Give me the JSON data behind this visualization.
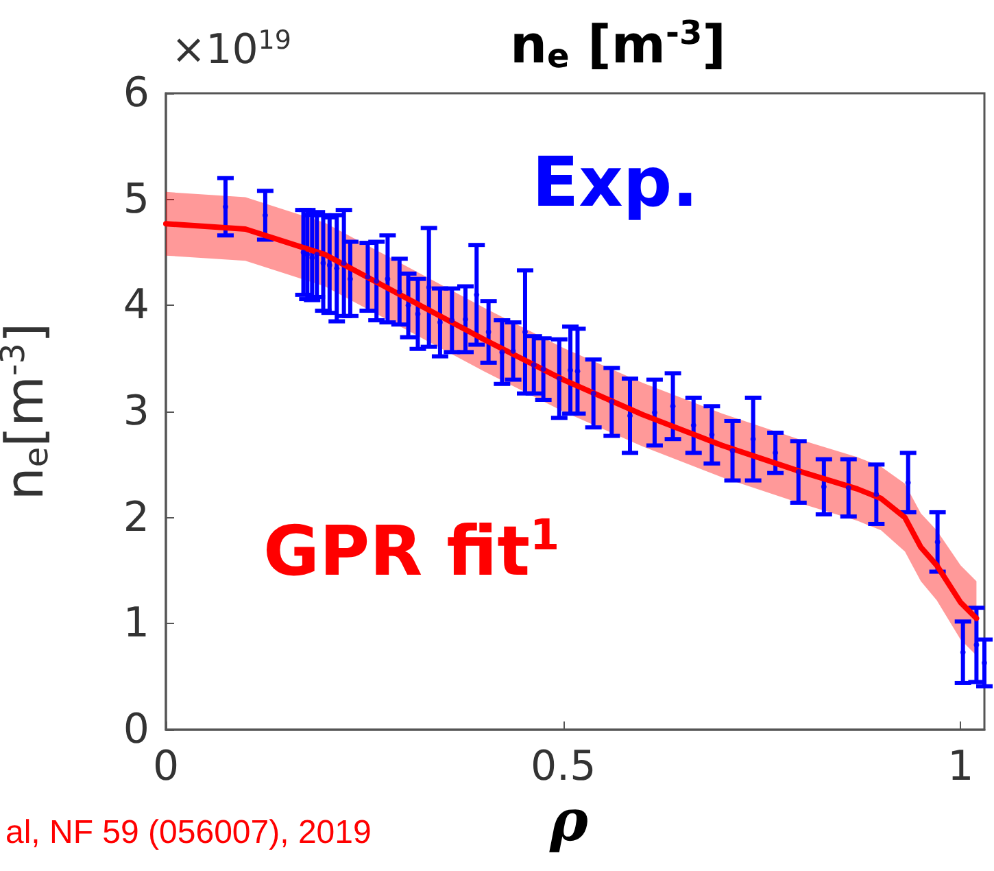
{
  "chart_data": {
    "type": "scatter",
    "title": "n$_{e}$ [m$^{-3}$]",
    "xlabel": "ρ",
    "ylabel": "n$_{e}$[m$^{-3}$]",
    "annotations": [
      "×10$^{19}$",
      "al, NF 59 (056007), 2019"
    ],
    "xlim": [
      0,
      1.03
    ],
    "ylim": [
      0,
      6
    ],
    "xticks": [
      0,
      0.5,
      1
    ],
    "yticks": [
      0,
      1,
      2,
      3,
      4,
      5,
      6
    ],
    "grid": false,
    "legend": false,
    "series": [
      {
        "name": "Exp.",
        "color": "#0000ff",
        "x": [
          0.075,
          0.125,
          0.173,
          0.178,
          0.184,
          0.19,
          0.198,
          0.206,
          0.215,
          0.224,
          0.232,
          0.254,
          0.265,
          0.279,
          0.294,
          0.305,
          0.317,
          0.331,
          0.345,
          0.36,
          0.377,
          0.391,
          0.406,
          0.423,
          0.437,
          0.452,
          0.463,
          0.475,
          0.495,
          0.509,
          0.518,
          0.538,
          0.561,
          0.584,
          0.615,
          0.638,
          0.664,
          0.687,
          0.713,
          0.739,
          0.767,
          0.796,
          0.828,
          0.859,
          0.894,
          0.934,
          0.971,
          1.003,
          1.02,
          1.03
        ],
        "values": [
          4.93,
          4.85,
          4.5,
          4.48,
          4.45,
          4.48,
          4.4,
          4.38,
          4.35,
          4.4,
          4.25,
          4.27,
          4.23,
          4.25,
          4.13,
          4.0,
          3.92,
          4.17,
          3.84,
          3.86,
          3.87,
          4.1,
          3.75,
          3.56,
          3.57,
          3.75,
          3.44,
          3.4,
          3.31,
          3.39,
          3.38,
          3.17,
          3.09,
          2.96,
          2.99,
          3.05,
          2.87,
          2.78,
          2.63,
          2.74,
          2.61,
          2.43,
          2.29,
          2.28,
          2.22,
          2.33,
          1.77,
          0.73,
          0.8,
          0.63
        ],
        "errors": [
          0.27,
          0.23,
          0.4,
          0.42,
          0.4,
          0.4,
          0.45,
          0.45,
          0.5,
          0.5,
          0.35,
          0.32,
          0.37,
          0.41,
          0.31,
          0.3,
          0.33,
          0.56,
          0.32,
          0.3,
          0.31,
          0.47,
          0.29,
          0.3,
          0.27,
          0.58,
          0.27,
          0.29,
          0.37,
          0.41,
          0.4,
          0.32,
          0.32,
          0.35,
          0.31,
          0.31,
          0.26,
          0.27,
          0.28,
          0.39,
          0.19,
          0.29,
          0.26,
          0.27,
          0.28,
          0.28,
          0.28,
          0.29,
          0.35,
          0.22
        ]
      },
      {
        "name": "GPR fit$^{1}$",
        "type": "line",
        "color": "#ff0000",
        "marker": "none",
        "x": [
          0,
          0.1,
          0.2,
          0.3,
          0.4,
          0.5,
          0.6,
          0.7,
          0.8,
          0.87,
          0.9,
          0.93,
          0.95,
          0.97,
          1.0,
          1.02
        ],
        "values": [
          4.77,
          4.72,
          4.48,
          4.08,
          3.68,
          3.3,
          2.97,
          2.68,
          2.43,
          2.27,
          2.18,
          2.0,
          1.72,
          1.55,
          1.2,
          1.05
        ],
        "lower": [
          4.47,
          4.42,
          4.18,
          3.78,
          3.38,
          3.0,
          2.67,
          2.38,
          2.13,
          1.97,
          1.88,
          1.68,
          1.4,
          1.22,
          0.85,
          0.7
        ],
        "upper": [
          5.07,
          5.02,
          4.78,
          4.38,
          3.98,
          3.6,
          3.27,
          2.98,
          2.73,
          2.57,
          2.48,
          2.32,
          2.04,
          1.88,
          1.55,
          1.4
        ]
      }
    ]
  }
}
